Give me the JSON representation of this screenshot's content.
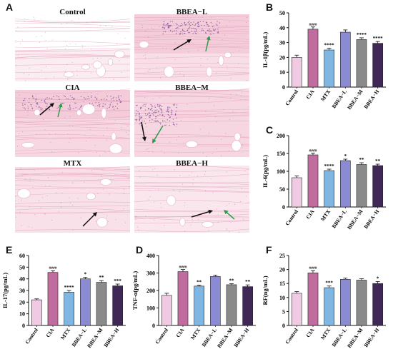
{
  "figure": {
    "panel_letters": {
      "A": "A",
      "B": "B",
      "C": "C",
      "D": "D",
      "E": "E",
      "F": "F"
    },
    "histology": [
      {
        "title": "Control",
        "arrows": []
      },
      {
        "title": "BBEA−L",
        "arrows": [
          "black",
          "green"
        ]
      },
      {
        "title": "CIA",
        "arrows": [
          "black",
          "green"
        ]
      },
      {
        "title": "BBEA−M",
        "arrows": [
          "black",
          "green"
        ]
      },
      {
        "title": "MTX",
        "arrows": [
          "black"
        ]
      },
      {
        "title": "BBEA−H",
        "arrows": [
          "black",
          "green"
        ]
      }
    ],
    "arrow_colors": {
      "black": "#111111",
      "green": "#2e9a4b"
    },
    "stain_colors": {
      "tissue": "#f3c8d6",
      "nuclei": "#7d4f9a",
      "background": "#ffffff"
    }
  },
  "chart_data": [
    {
      "panel": "B",
      "type": "bar",
      "ylabel": "IL-1β(pg/mL)",
      "categories": [
        "Control",
        "CIA",
        "MTX",
        "BBEA−L",
        "BBEA−M",
        "BBEA−H"
      ],
      "values": [
        20,
        39,
        25,
        37,
        32,
        29.5
      ],
      "errors": [
        1.5,
        1.5,
        1.2,
        1.5,
        1.2,
        1.2
      ],
      "sig": [
        "",
        "####",
        "****",
        "",
        "****",
        "****"
      ],
      "ylim": [
        0,
        50
      ],
      "yticks": [
        0,
        10,
        20,
        30,
        40,
        50
      ],
      "colors": [
        "#f0c9e3",
        "#c06c9e",
        "#7fb6e2",
        "#8b8bd4",
        "#8a8a8a",
        "#3f2855"
      ]
    },
    {
      "panel": "C",
      "type": "bar",
      "ylabel": "IL-6(pg/mL)",
      "categories": [
        "Control",
        "CIA",
        "MTX",
        "BBEA−L",
        "BBEA−M",
        "BBEA−H"
      ],
      "values": [
        82,
        146,
        102,
        130,
        119,
        116
      ],
      "errors": [
        5,
        5,
        4,
        4,
        5,
        4
      ],
      "sig": [
        "",
        "####",
        "****",
        "*",
        "**",
        "**"
      ],
      "ylim": [
        0,
        200
      ],
      "yticks": [
        0,
        50,
        100,
        150,
        200
      ],
      "colors": [
        "#f0c9e3",
        "#c06c9e",
        "#7fb6e2",
        "#8b8bd4",
        "#8a8a8a",
        "#3f2855"
      ]
    },
    {
      "panel": "E",
      "type": "bar",
      "ylabel": "IL-17(pg/mL)",
      "categories": [
        "Control",
        "CIA",
        "MTX",
        "BBEA−L",
        "BBEA−M",
        "BBEA−H"
      ],
      "values": [
        22,
        45.5,
        28.5,
        40,
        37,
        34
      ],
      "errors": [
        0.8,
        1.5,
        1.5,
        1.2,
        1.5,
        1.5
      ],
      "sig": [
        "",
        "####",
        "****",
        "*",
        "**",
        "***"
      ],
      "ylim": [
        0,
        60
      ],
      "yticks": [
        0,
        10,
        20,
        30,
        40,
        50,
        60
      ],
      "colors": [
        "#f0c9e3",
        "#c06c9e",
        "#7fb6e2",
        "#8b8bd4",
        "#8a8a8a",
        "#3f2855"
      ]
    },
    {
      "panel": "D",
      "type": "bar",
      "ylabel": "TNF-α(pg/mL)",
      "categories": [
        "Control",
        "CIA",
        "MTX",
        "BBEA−L",
        "BBEA−M",
        "BBEA−H"
      ],
      "values": [
        172,
        308,
        225,
        280,
        233,
        222
      ],
      "errors": [
        12,
        12,
        6,
        8,
        6,
        10
      ],
      "sig": [
        "",
        "####",
        "**",
        "",
        "**",
        "**"
      ],
      "ylim": [
        0,
        400
      ],
      "yticks": [
        0,
        100,
        200,
        300,
        400
      ],
      "colors": [
        "#f0c9e3",
        "#c06c9e",
        "#7fb6e2",
        "#8b8bd4",
        "#8a8a8a",
        "#3f2855"
      ]
    },
    {
      "panel": "F",
      "type": "bar",
      "ylabel": "RF(ng/mL)",
      "categories": [
        "Control",
        "CIA",
        "MTX",
        "BBEA−L",
        "BBEA−M",
        "BBEA−H"
      ],
      "values": [
        11.5,
        18.8,
        13.5,
        16.5,
        16.2,
        15
      ],
      "errors": [
        0.6,
        0.8,
        0.6,
        0.4,
        0.5,
        0.7
      ],
      "sig": [
        "",
        "####",
        "***",
        "",
        "",
        "*"
      ],
      "ylim": [
        0,
        25
      ],
      "yticks": [
        0,
        5,
        10,
        15,
        20,
        25
      ],
      "colors": [
        "#f0c9e3",
        "#c06c9e",
        "#7fb6e2",
        "#8b8bd4",
        "#8a8a8a",
        "#3f2855"
      ]
    }
  ]
}
